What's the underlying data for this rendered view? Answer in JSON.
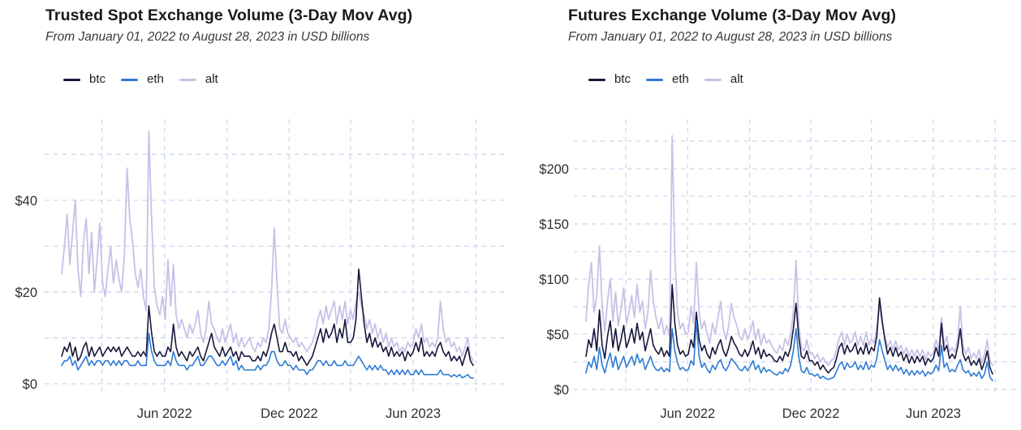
{
  "page": {
    "background": "#ffffff"
  },
  "chart_data": [
    {
      "id": "spot",
      "type": "line",
      "title": "Trusted Spot Exchange Volume (3-Day Mov Avg)",
      "subtitle": "From January 01, 2022 to August 28, 2023 in USD billions",
      "x_start_date": "2022-01-01",
      "x_end_date": "2023-08-28",
      "x_day_step": 4,
      "ylim": [
        0,
        56
      ],
      "grid": true,
      "grid_color": "#c9d8ee",
      "legend_position": "top-left",
      "y_ticks": [
        {
          "v": 0,
          "label": "$0"
        },
        {
          "v": 20,
          "label": "$20"
        },
        {
          "v": 40,
          "label": "$40"
        }
      ],
      "y_gridlines": [
        0,
        10,
        20,
        30,
        40,
        50
      ],
      "x_ticks": [
        {
          "day": 151,
          "label": "Jun 2022"
        },
        {
          "day": 334,
          "label": "Dec 2022"
        },
        {
          "day": 516,
          "label": "Jun 2023"
        }
      ],
      "x_gridline_days": [
        59,
        151,
        243,
        334,
        424,
        516,
        608
      ],
      "legend_order": [
        "btc",
        "eth",
        "alt"
      ],
      "series": [
        {
          "name": "alt",
          "color": "#c9c0e7",
          "width": 1.8,
          "values": [
            24,
            30,
            37,
            26,
            33,
            40,
            25,
            19,
            31,
            36,
            24,
            33,
            20,
            27,
            35,
            22,
            19,
            25,
            30,
            22,
            27,
            23,
            20,
            28,
            47,
            36,
            31,
            24,
            21,
            25,
            19,
            16,
            55,
            36,
            21,
            17,
            15,
            19,
            14,
            27,
            17,
            26,
            15,
            12,
            14,
            12,
            10,
            13,
            11,
            13,
            16,
            11,
            9,
            12,
            18,
            13,
            12,
            10,
            9,
            12,
            9,
            11,
            13,
            9,
            11,
            8,
            10,
            8,
            9,
            10,
            8,
            7,
            9,
            8,
            10,
            9,
            12,
            20,
            34,
            22,
            12,
            11,
            14,
            11,
            10,
            9,
            10,
            8,
            9,
            8,
            7,
            8,
            9,
            11,
            14,
            16,
            13,
            17,
            14,
            16,
            18,
            13,
            17,
            14,
            18,
            13,
            16,
            14,
            18,
            20,
            17,
            15,
            12,
            14,
            11,
            13,
            10,
            12,
            9,
            11,
            8,
            10,
            8,
            9,
            7,
            8,
            7,
            9,
            8,
            9,
            12,
            10,
            13,
            9,
            10,
            8,
            9,
            8,
            10,
            18,
            12,
            9,
            10,
            8,
            9,
            7,
            8,
            6,
            8,
            10,
            6,
            5
          ]
        },
        {
          "name": "btc",
          "color": "#17173c",
          "width": 1.6,
          "values": [
            6,
            8,
            7,
            9,
            6,
            8,
            5,
            6,
            8,
            9,
            6,
            8,
            6,
            7,
            8,
            6,
            7,
            8,
            7,
            8,
            7,
            8,
            6,
            7,
            8,
            7,
            6,
            6,
            7,
            6,
            7,
            6,
            17,
            11,
            7,
            6,
            7,
            6,
            6,
            8,
            7,
            13,
            8,
            6,
            7,
            6,
            5,
            7,
            6,
            7,
            8,
            6,
            5,
            7,
            9,
            11,
            8,
            7,
            6,
            8,
            6,
            7,
            8,
            6,
            7,
            5,
            7,
            6,
            6,
            6,
            5,
            5,
            6,
            5,
            7,
            6,
            8,
            11,
            13,
            10,
            7,
            7,
            9,
            7,
            7,
            6,
            7,
            5,
            6,
            5,
            4,
            5,
            6,
            8,
            10,
            12,
            9,
            12,
            10,
            11,
            13,
            9,
            12,
            10,
            14,
            9,
            9,
            10,
            14,
            25,
            19,
            13,
            9,
            11,
            8,
            10,
            8,
            9,
            7,
            8,
            6,
            8,
            6,
            7,
            6,
            7,
            5,
            7,
            6,
            7,
            9,
            7,
            10,
            6,
            7,
            6,
            7,
            6,
            8,
            9,
            7,
            6,
            7,
            5,
            6,
            5,
            6,
            4,
            6,
            8,
            5,
            4
          ]
        },
        {
          "name": "eth",
          "color": "#2e7bd4",
          "width": 1.6,
          "values": [
            4,
            5,
            5,
            6,
            4,
            5,
            3,
            4,
            5,
            6,
            4,
            5,
            4,
            5,
            5,
            4,
            5,
            5,
            4,
            5,
            4,
            5,
            4,
            5,
            5,
            4,
            4,
            4,
            5,
            4,
            4,
            4,
            11,
            7,
            5,
            4,
            4,
            4,
            4,
            5,
            4,
            7,
            5,
            4,
            4,
            4,
            3,
            4,
            4,
            5,
            6,
            4,
            4,
            5,
            6,
            6,
            5,
            4,
            4,
            5,
            4,
            5,
            6,
            4,
            5,
            3,
            4,
            3,
            3,
            3,
            3,
            3,
            4,
            3,
            4,
            4,
            5,
            7,
            7,
            5,
            4,
            4,
            5,
            4,
            4,
            3,
            4,
            3,
            3,
            3,
            2,
            3,
            3,
            4,
            5,
            5,
            4,
            5,
            4,
            4,
            5,
            4,
            4,
            4,
            5,
            4,
            4,
            4,
            5,
            6,
            5,
            4,
            3,
            4,
            3,
            4,
            3,
            4,
            3,
            3,
            2,
            3,
            2,
            3,
            2,
            3,
            2,
            3,
            2,
            2,
            3,
            2,
            3,
            2,
            2,
            2,
            2,
            2,
            2,
            3,
            2,
            2,
            2,
            1.5,
            2,
            1.5,
            2,
            1.3,
            1.6,
            2,
            1.3,
            1.2
          ]
        }
      ]
    },
    {
      "id": "futures",
      "type": "line",
      "title": "Futures Exchange Volume (3-Day Mov Avg)",
      "subtitle": "From January 01, 2022 to August 28, 2023 in USD billions",
      "x_start_date": "2022-01-01",
      "x_end_date": "2023-08-28",
      "x_day_step": 4,
      "ylim": [
        0,
        235
      ],
      "grid": true,
      "grid_color": "#c9d8ee",
      "legend_position": "top-left",
      "y_ticks": [
        {
          "v": 0,
          "label": "$0"
        },
        {
          "v": 50,
          "label": "$50"
        },
        {
          "v": 100,
          "label": "$100"
        },
        {
          "v": 150,
          "label": "$150"
        },
        {
          "v": 200,
          "label": "$200"
        }
      ],
      "y_gridlines": [
        0,
        25,
        50,
        75,
        100,
        125,
        150,
        175,
        200,
        225
      ],
      "x_ticks": [
        {
          "day": 151,
          "label": "Jun 2022"
        },
        {
          "day": 334,
          "label": "Dec 2022"
        },
        {
          "day": 516,
          "label": "Jun 2023"
        }
      ],
      "x_gridline_days": [
        59,
        151,
        243,
        334,
        424,
        516,
        608
      ],
      "legend_order": [
        "btc",
        "eth",
        "alt"
      ],
      "series": [
        {
          "name": "alt",
          "color": "#c9c0e7",
          "width": 1.8,
          "values": [
            62,
            95,
            115,
            70,
            85,
            130,
            75,
            52,
            80,
            100,
            62,
            88,
            58,
            72,
            92,
            60,
            70,
            85,
            65,
            95,
            70,
            80,
            55,
            70,
            108,
            80,
            65,
            55,
            65,
            50,
            58,
            48,
            230,
            120,
            70,
            55,
            60,
            50,
            52,
            75,
            60,
            115,
            70,
            55,
            62,
            50,
            42,
            60,
            50,
            65,
            80,
            55,
            45,
            58,
            78,
            65,
            58,
            48,
            45,
            55,
            45,
            52,
            62,
            45,
            55,
            40,
            50,
            42,
            45,
            40,
            35,
            33,
            40,
            35,
            46,
            40,
            50,
            70,
            117,
            60,
            38,
            35,
            45,
            33,
            33,
            28,
            32,
            25,
            29,
            25,
            22,
            26,
            28,
            36,
            46,
            52,
            40,
            50,
            42,
            45,
            52,
            40,
            48,
            40,
            52,
            40,
            46,
            42,
            56,
            75,
            58,
            48,
            38,
            44,
            36,
            44,
            36,
            40,
            32,
            38,
            30,
            36,
            30,
            36,
            30,
            36,
            27,
            34,
            30,
            33,
            45,
            36,
            65,
            40,
            48,
            34,
            38,
            34,
            45,
            75,
            40,
            32,
            38,
            28,
            33,
            28,
            36,
            24,
            32,
            45,
            26,
            22
          ]
        },
        {
          "name": "btc",
          "color": "#17173c",
          "width": 1.6,
          "values": [
            30,
            45,
            38,
            55,
            35,
            72,
            40,
            28,
            48,
            62,
            38,
            55,
            35,
            45,
            58,
            38,
            45,
            55,
            42,
            60,
            45,
            52,
            35,
            45,
            55,
            40,
            35,
            32,
            38,
            30,
            35,
            30,
            95,
            60,
            40,
            32,
            35,
            30,
            32,
            45,
            38,
            70,
            45,
            35,
            40,
            32,
            28,
            38,
            32,
            40,
            45,
            35,
            30,
            38,
            48,
            42,
            38,
            32,
            30,
            36,
            30,
            36,
            44,
            32,
            38,
            28,
            36,
            30,
            32,
            30,
            26,
            25,
            30,
            26,
            34,
            30,
            38,
            55,
            78,
            48,
            30,
            28,
            35,
            26,
            26,
            22,
            25,
            18,
            22,
            18,
            15,
            18,
            20,
            28,
            38,
            42,
            32,
            40,
            34,
            36,
            42,
            32,
            38,
            32,
            42,
            32,
            38,
            35,
            48,
            83,
            62,
            45,
            32,
            38,
            30,
            38,
            30,
            34,
            26,
            32,
            24,
            30,
            24,
            30,
            25,
            30,
            22,
            28,
            25,
            28,
            38,
            30,
            60,
            35,
            40,
            28,
            32,
            28,
            38,
            55,
            32,
            26,
            30,
            22,
            26,
            22,
            28,
            18,
            25,
            35,
            20,
            14
          ]
        },
        {
          "name": "eth",
          "color": "#2e7bd4",
          "width": 1.6,
          "values": [
            15,
            25,
            20,
            30,
            18,
            38,
            22,
            15,
            25,
            33,
            20,
            30,
            18,
            24,
            30,
            20,
            25,
            30,
            22,
            32,
            24,
            28,
            18,
            24,
            30,
            22,
            18,
            17,
            20,
            16,
            19,
            16,
            55,
            35,
            24,
            18,
            20,
            17,
            18,
            26,
            22,
            62,
            30,
            20,
            24,
            18,
            15,
            22,
            18,
            24,
            27,
            20,
            17,
            22,
            28,
            25,
            22,
            18,
            17,
            21,
            17,
            21,
            26,
            18,
            22,
            15,
            20,
            16,
            18,
            16,
            14,
            13,
            16,
            14,
            19,
            16,
            22,
            35,
            55,
            30,
            17,
            15,
            20,
            14,
            14,
            12,
            14,
            10,
            12,
            10,
            9,
            10,
            11,
            16,
            22,
            25,
            18,
            24,
            20,
            21,
            25,
            18,
            22,
            18,
            25,
            18,
            22,
            20,
            28,
            45,
            35,
            26,
            18,
            22,
            17,
            22,
            17,
            20,
            14,
            18,
            13,
            17,
            13,
            17,
            14,
            17,
            12,
            16,
            14,
            16,
            22,
            17,
            40,
            20,
            24,
            16,
            18,
            16,
            22,
            27,
            18,
            15,
            17,
            12,
            15,
            12,
            16,
            10,
            14,
            25,
            11,
            8
          ]
        }
      ]
    }
  ]
}
